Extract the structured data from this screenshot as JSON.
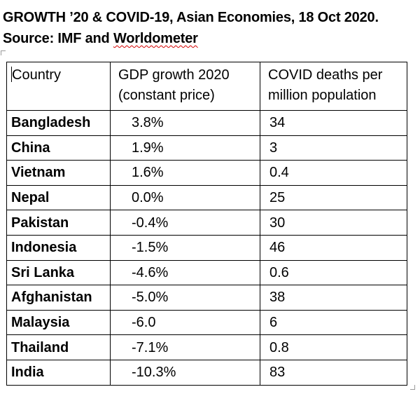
{
  "header": {
    "title_line1": "GROWTH ’20 & COVID-19, Asian Economies, 18 Oct 2020.",
    "title_line2_prefix": "Source: IMF and ",
    "title_line2_source": "Worldometer"
  },
  "table": {
    "columns": [
      "Country",
      "GDP growth 2020 (constant price)",
      "COVID deaths per million population"
    ],
    "rows": [
      {
        "country": "Bangladesh",
        "gdp_growth": "3.8%",
        "covid_deaths": "34"
      },
      {
        "country": "China",
        "gdp_growth": "1.9%",
        "covid_deaths": "3"
      },
      {
        "country": "Vietnam",
        "gdp_growth": "1.6%",
        "covid_deaths": "0.4"
      },
      {
        "country": "Nepal",
        "gdp_growth": "0.0%",
        "covid_deaths": "25"
      },
      {
        "country": "Pakistan",
        "gdp_growth": "-0.4%",
        "covid_deaths": "30"
      },
      {
        "country": "Indonesia",
        "gdp_growth": "-1.5%",
        "covid_deaths": "46"
      },
      {
        "country": "Sri Lanka",
        "gdp_growth": "-4.6%",
        "covid_deaths": "0.6"
      },
      {
        "country": "Afghanistan",
        "gdp_growth": "-5.0%",
        "covid_deaths": "38"
      },
      {
        "country": "Malaysia",
        "gdp_growth": "-6.0",
        "covid_deaths": "6"
      },
      {
        "country": "Thailand",
        "gdp_growth": "-7.1%",
        "covid_deaths": "0.8"
      },
      {
        "country": "India",
        "gdp_growth": "-10.3%",
        "covid_deaths": "83"
      }
    ]
  }
}
